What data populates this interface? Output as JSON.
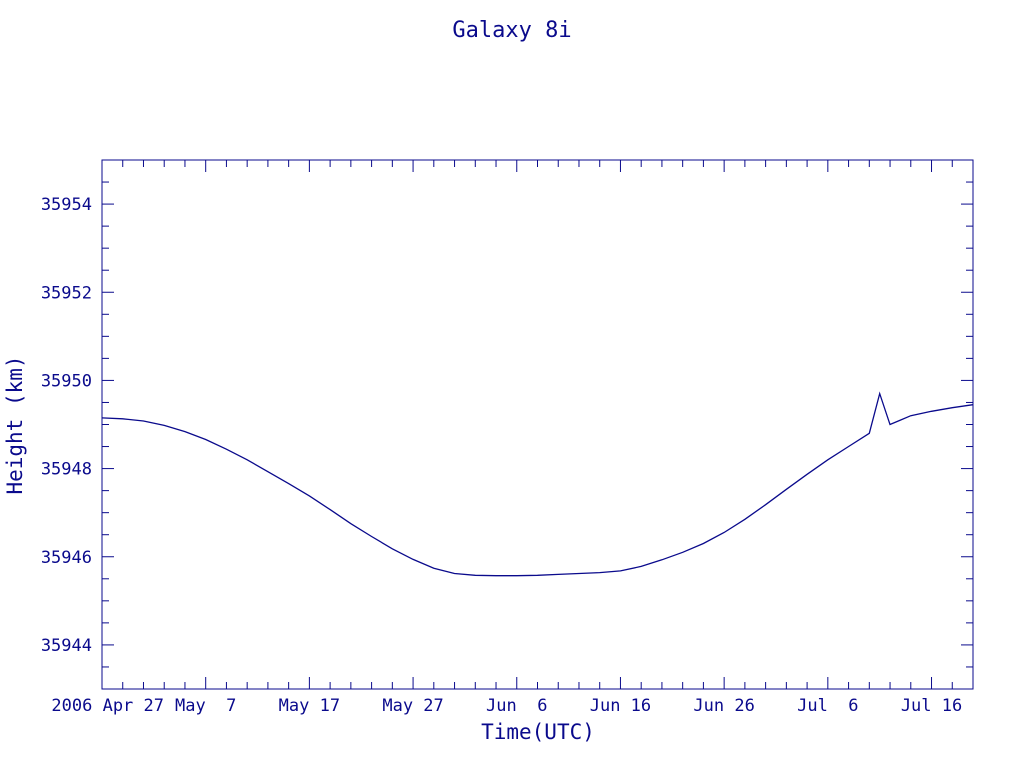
{
  "chart_data": {
    "type": "line",
    "title": "Galaxy 8i",
    "xlabel": "Time(UTC)",
    "ylabel": "Height (km)",
    "ylim": [
      35943,
      35955
    ],
    "xlim": [
      "2006-04-27",
      "2006-07-20"
    ],
    "x_tick_labels": [
      "2006 Apr 27",
      "May  7",
      "May 17",
      "May 27",
      "Jun  6",
      "Jun 16",
      "Jun 26",
      "Jul  6",
      "Jul 16"
    ],
    "x_tick_dates": [
      "2006-04-27",
      "2006-05-07",
      "2006-05-17",
      "2006-05-27",
      "2006-06-06",
      "2006-06-16",
      "2006-06-26",
      "2006-07-06",
      "2006-07-16"
    ],
    "y_tick_labels": [
      "35944",
      "35946",
      "35948",
      "35950",
      "35952",
      "35954"
    ],
    "y_ticks": [
      35944,
      35946,
      35948,
      35950,
      35952,
      35954
    ],
    "grid": false,
    "color": "#0a0a8c",
    "series": [
      {
        "x": [
          "2006-04-27",
          "2006-04-29",
          "2006-05-01",
          "2006-05-03",
          "2006-05-05",
          "2006-05-07",
          "2006-05-09",
          "2006-05-11",
          "2006-05-13",
          "2006-05-15",
          "2006-05-17",
          "2006-05-19",
          "2006-05-21",
          "2006-05-23",
          "2006-05-25",
          "2006-05-27",
          "2006-05-29",
          "2006-05-31",
          "2006-06-02",
          "2006-06-04",
          "2006-06-06",
          "2006-06-08",
          "2006-06-10",
          "2006-06-12",
          "2006-06-14",
          "2006-06-16",
          "2006-06-18",
          "2006-06-20",
          "2006-06-22",
          "2006-06-24",
          "2006-06-26",
          "2006-06-28",
          "2006-06-30",
          "2006-07-02",
          "2006-07-04",
          "2006-07-06",
          "2006-07-08",
          "2006-07-10",
          "2006-07-11",
          "2006-07-12",
          "2006-07-13",
          "2006-07-14",
          "2006-07-16",
          "2006-07-18",
          "2006-07-20"
        ],
        "y": [
          35949.15,
          35949.13,
          35949.08,
          35948.98,
          35948.84,
          35948.66,
          35948.44,
          35948.2,
          35947.93,
          35947.66,
          35947.38,
          35947.07,
          35946.75,
          35946.46,
          35946.18,
          35945.94,
          35945.74,
          35945.62,
          35945.58,
          35945.57,
          35945.57,
          35945.58,
          35945.6,
          35945.62,
          35945.64,
          35945.68,
          35945.78,
          35945.93,
          35946.1,
          35946.3,
          35946.55,
          35946.85,
          35947.18,
          35947.53,
          35947.87,
          35948.2,
          35948.5,
          35948.8,
          35949.7,
          35949.0,
          35949.1,
          35949.2,
          35949.3,
          35949.38,
          35949.45
        ]
      }
    ]
  }
}
